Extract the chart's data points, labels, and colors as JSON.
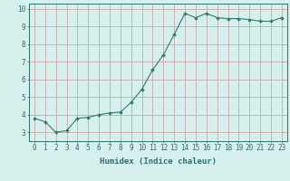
{
  "x": [
    0,
    1,
    2,
    3,
    4,
    5,
    6,
    7,
    8,
    9,
    10,
    11,
    12,
    13,
    14,
    15,
    16,
    17,
    18,
    19,
    20,
    21,
    22,
    23
  ],
  "y": [
    3.8,
    3.6,
    3.0,
    3.1,
    3.8,
    3.85,
    4.0,
    4.1,
    4.15,
    4.7,
    5.45,
    6.55,
    7.4,
    8.55,
    9.75,
    9.5,
    9.75,
    9.5,
    9.45,
    9.45,
    9.4,
    9.3,
    9.3,
    9.5
  ],
  "line_color": "#2e7d6e",
  "marker": "D",
  "marker_size": 1.8,
  "bg_color": "#d6f0ee",
  "grid_color": "#c8a8a8",
  "axis_color": "#2e6e6e",
  "xlabel": "Humidex (Indice chaleur)",
  "xlabel_fontsize": 6.5,
  "tick_fontsize": 5.5,
  "xlim": [
    -0.5,
    23.5
  ],
  "ylim": [
    2.5,
    10.3
  ],
  "yticks": [
    3,
    4,
    5,
    6,
    7,
    8,
    9,
    10
  ],
  "xticks": [
    0,
    1,
    2,
    3,
    4,
    5,
    6,
    7,
    8,
    9,
    10,
    11,
    12,
    13,
    14,
    15,
    16,
    17,
    18,
    19,
    20,
    21,
    22,
    23
  ]
}
